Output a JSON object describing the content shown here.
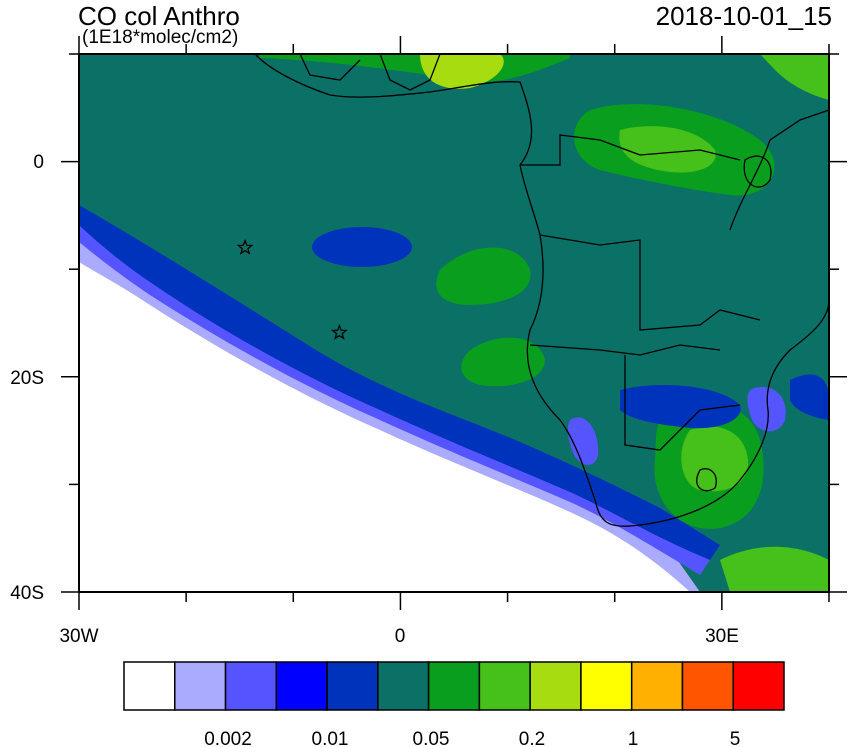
{
  "header": {
    "title": "CO col Anthro",
    "units": "(1E18*molec/cm2)",
    "timestamp": "2018-10-01_15"
  },
  "axes": {
    "x_ticks": [
      {
        "lon": -30,
        "label": "30W"
      },
      {
        "lon": 0,
        "label": "0"
      },
      {
        "lon": 30,
        "label": "30E"
      }
    ],
    "y_ticks": [
      {
        "lat": 0,
        "label": "0"
      },
      {
        "lat": -20,
        "label": "20S"
      },
      {
        "lat": -40,
        "label": "40S"
      }
    ],
    "lon_range": [
      -30,
      40
    ],
    "lat_range": [
      -40,
      10
    ]
  },
  "legend": {
    "colors": [
      "#ffffff",
      "#aaaaff",
      "#5555ff",
      "#0000ff",
      "#0033bb",
      "#0b7066",
      "#0a9e1e",
      "#46c01a",
      "#a6dc10",
      "#ffff00",
      "#ffb000",
      "#ff5500",
      "#ff0000"
    ],
    "labels": [
      "0.002",
      "0.01",
      "0.05",
      "0.2",
      "1",
      "5"
    ]
  },
  "map": {
    "markers": [
      {
        "name": "star-marker-1",
        "lon": -14.5,
        "lat": -8
      },
      {
        "name": "star-marker-2",
        "lon": -5.7,
        "lat": -15.9
      }
    ]
  }
}
